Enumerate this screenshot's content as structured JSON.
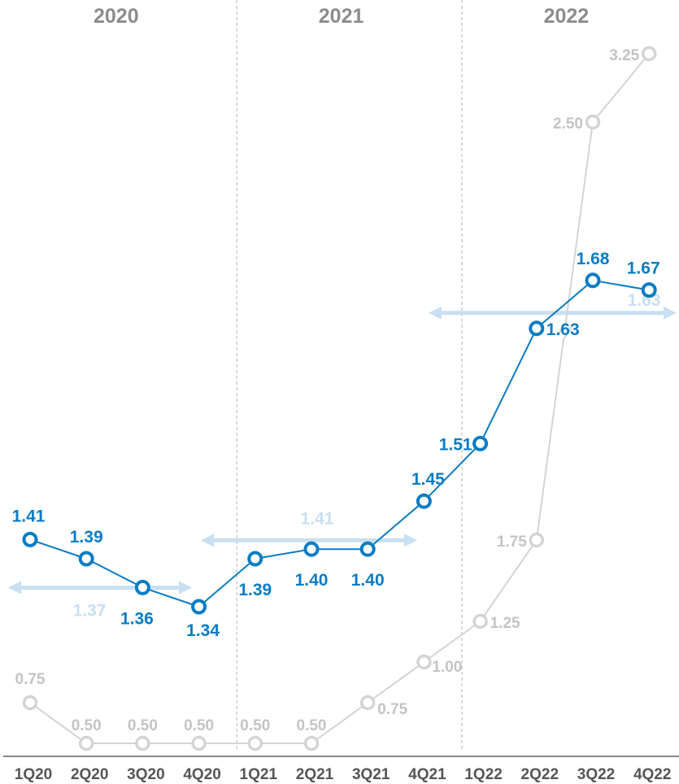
{
  "chart_data": {
    "type": "line",
    "categories": [
      "1Q20",
      "2Q20",
      "3Q20",
      "4Q20",
      "1Q21",
      "2Q21",
      "3Q21",
      "4Q21",
      "1Q22",
      "2Q22",
      "3Q22",
      "4Q22"
    ],
    "period_labels": [
      "2020",
      "2021",
      "2022"
    ],
    "series": [
      {
        "values": [
          1.41,
          1.39,
          1.36,
          1.34,
          1.39,
          1.4,
          1.4,
          1.45,
          1.51,
          1.63,
          1.68,
          1.67
        ],
        "labels": [
          "1.41",
          "1.39",
          "1.36",
          "1.34",
          "1.39",
          "1.40",
          "1.40",
          "1.45",
          "1.51",
          "1.63",
          "1.68",
          "1.67"
        ],
        "color": "#0A7CC4"
      },
      {
        "values": [
          0.75,
          0.5,
          0.5,
          0.5,
          0.5,
          0.5,
          0.75,
          1.0,
          1.25,
          1.75,
          2.5,
          3.25
        ],
        "labels": [
          "0.75",
          "0.50",
          "0.50",
          "0.50",
          "0.50",
          "0.50",
          "0.75",
          "1.00",
          "1.25",
          "1.75",
          "2.50",
          "3.25"
        ],
        "color": "#D4D4D4",
        "axis_break_between": [
          "2Q22",
          "3Q22"
        ]
      }
    ],
    "annual_averages": [
      {
        "period": "2020",
        "value": 1.37,
        "label": "1.37"
      },
      {
        "period": "2021",
        "value": 1.41,
        "label": "1.41"
      },
      {
        "period": "2022",
        "value": 1.63,
        "label": "1.63"
      }
    ],
    "average_color": "#C9DFF2",
    "label_color_primary": "#0A7CC4",
    "label_color_secondary": "#C4C4C4",
    "period_label_color": "#8C8C8C",
    "axis_color": "#888888"
  }
}
